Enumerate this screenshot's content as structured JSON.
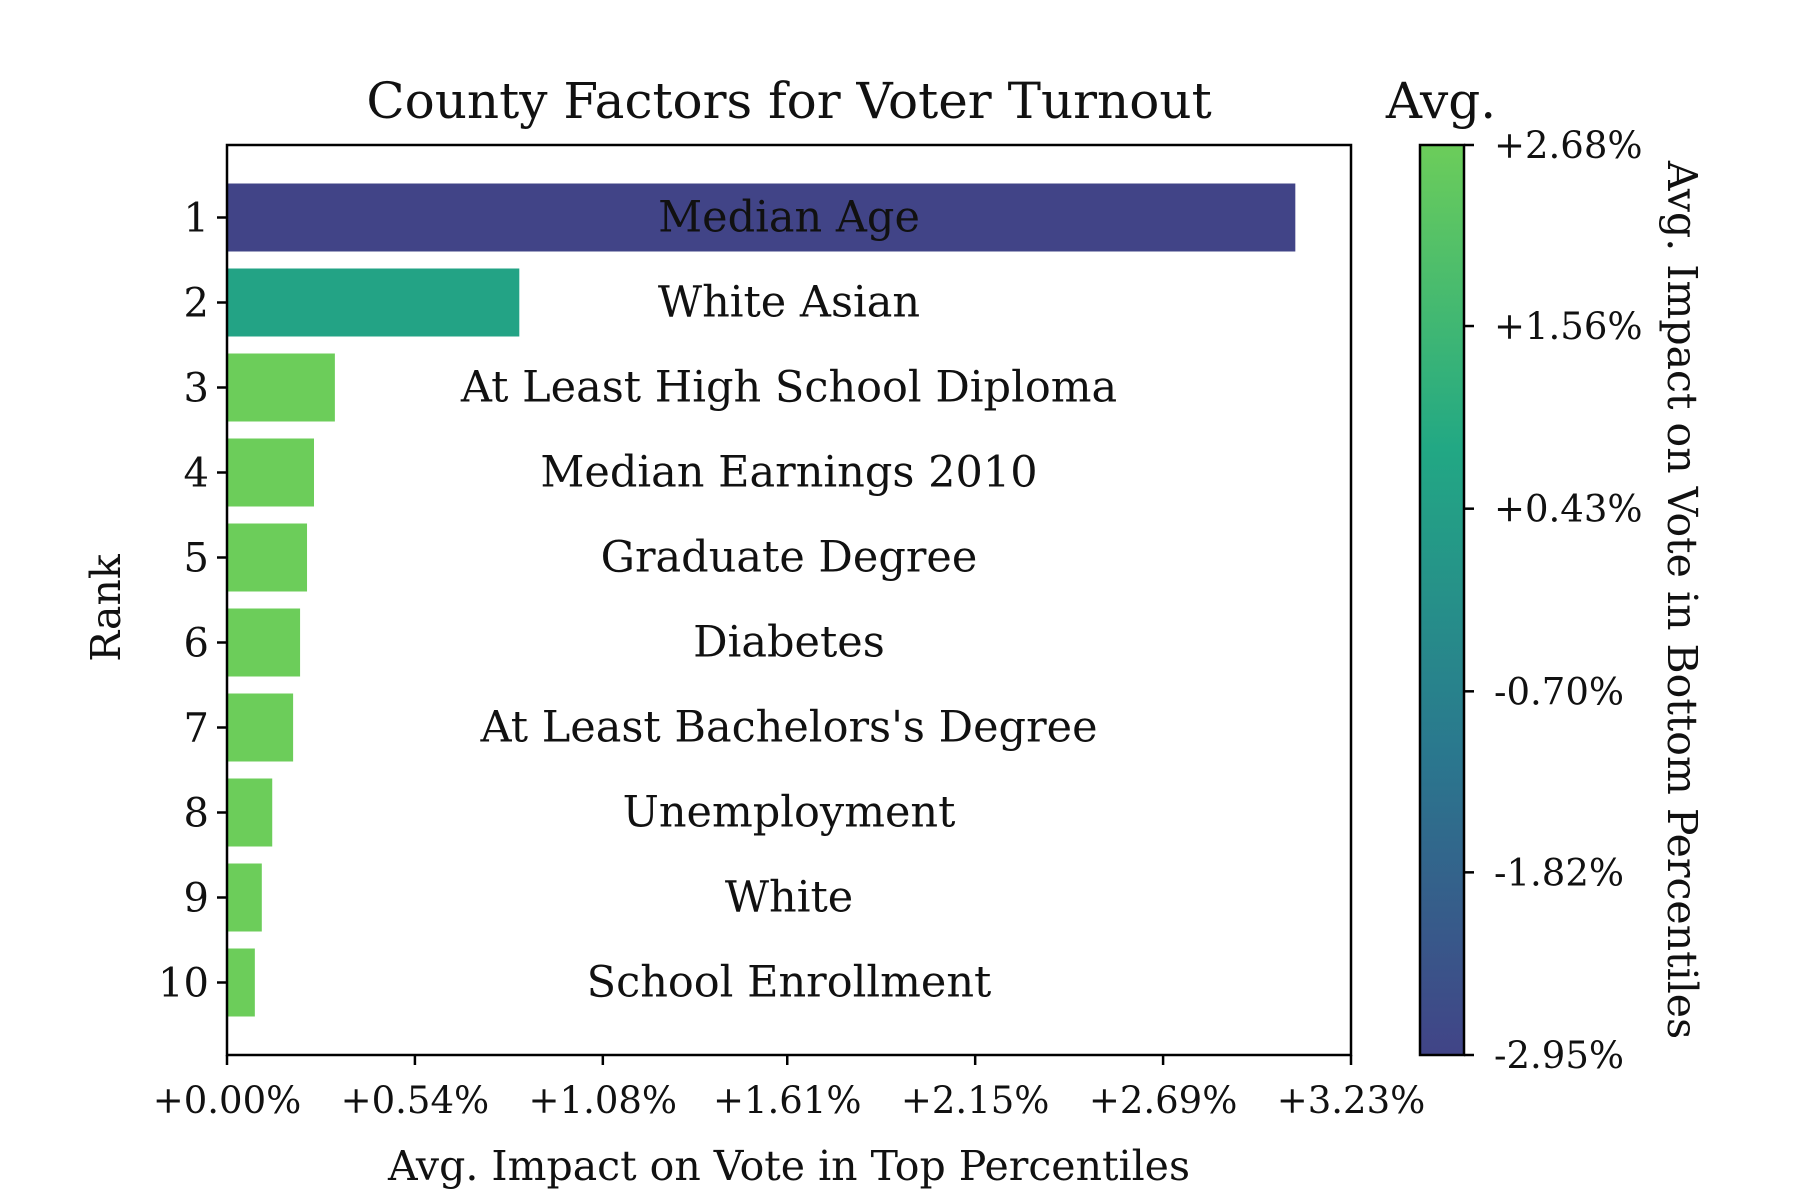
{
  "chart_data": {
    "type": "bar",
    "orientation": "horizontal",
    "title": "County Factors for Voter Turnout",
    "xlabel": "Avg. Impact on Vote in Top Percentiles",
    "ylabel": "Rank",
    "xlim": [
      0.0,
      3.23
    ],
    "x_ticks": [
      "+0.00%",
      "+0.54%",
      "+1.08%",
      "+1.61%",
      "+2.15%",
      "+2.69%",
      "+3.23%"
    ],
    "x_tick_values": [
      0.0,
      0.54,
      1.08,
      1.61,
      2.15,
      2.69,
      3.23
    ],
    "ranks": [
      "1",
      "2",
      "3",
      "4",
      "5",
      "6",
      "7",
      "8",
      "9",
      "10"
    ],
    "categories": [
      "Median Age",
      "White Asian",
      "At Least High School Diploma",
      "Median Earnings 2010",
      "Graduate Degree",
      "Diabetes",
      "At Least Bachelors's Degree",
      "Unemployment",
      "White",
      "School Enrollment"
    ],
    "values": [
      3.07,
      0.84,
      0.31,
      0.25,
      0.23,
      0.21,
      0.19,
      0.13,
      0.1,
      0.08
    ],
    "color_values": [
      -2.95,
      0.6,
      2.68,
      2.68,
      2.68,
      2.68,
      2.68,
      2.68,
      2.68,
      2.68
    ],
    "grid": false,
    "colorbar": {
      "title": "Avg.",
      "label": "Avg. Impact on Vote in Bottom Percentiles",
      "range": [
        -2.95,
        2.68
      ],
      "ticks": [
        "+2.68%",
        "+1.56%",
        "+0.43%",
        "-0.70%",
        "-1.82%",
        "-2.95%"
      ],
      "tick_values": [
        2.68,
        1.56,
        0.43,
        -0.7,
        -1.82,
        -2.95
      ],
      "colormap": "viridis",
      "gradient_stops": [
        "#414487",
        "#2a788e",
        "#22a884",
        "#6ccd5a"
      ]
    }
  }
}
